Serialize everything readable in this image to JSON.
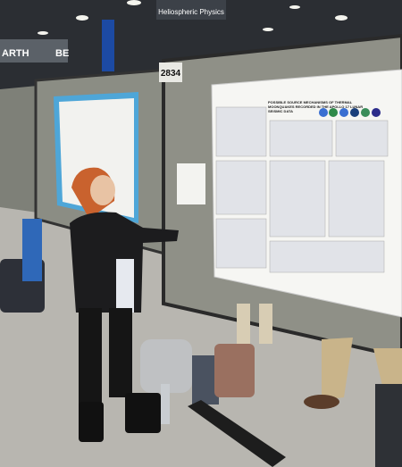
{
  "signs": {
    "hanging_sign": "Heliospheric Physics",
    "booth_number": "2834",
    "left_banner": "ARTH",
    "left_banner_2": "BE"
  },
  "poster": {
    "title": "POSSIBLE SOURCE MECHANISMS OF THERMAL MOONQUAKES RECORDED IN THE APOLLO 17 LUNAR SEISMIC DATA"
  }
}
